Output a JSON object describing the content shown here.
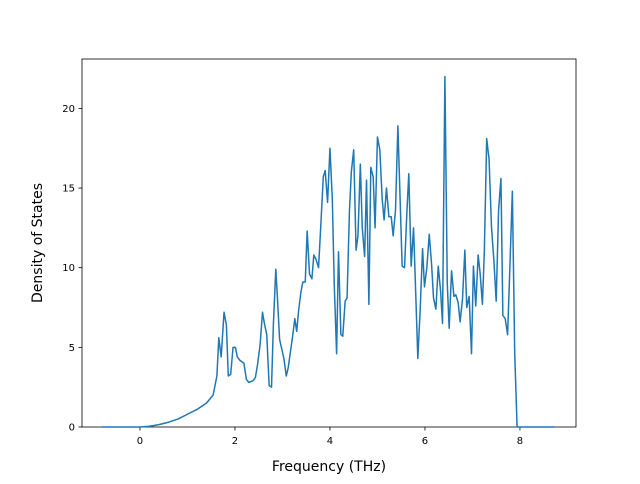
{
  "chart_data": {
    "type": "line",
    "xlabel": "Frequency (THz)",
    "ylabel": "Density of States",
    "xlim": [
      -1.22,
      9.18
    ],
    "ylim": [
      0,
      23.1
    ],
    "xticks": [
      0,
      2,
      4,
      6,
      8
    ],
    "yticks": [
      0,
      5,
      10,
      15,
      20
    ],
    "grid": false,
    "series": [
      {
        "name": "DOS",
        "color": "#1f77b4",
        "x": [
          -0.8,
          -0.4,
          0,
          0.2,
          0.4,
          0.6,
          0.8,
          1.0,
          1.2,
          1.4,
          1.54,
          1.62,
          1.66,
          1.71,
          1.77,
          1.82,
          1.86,
          1.91,
          1.96,
          2.01,
          2.05,
          2.1,
          2.19,
          2.24,
          2.29,
          2.38,
          2.43,
          2.48,
          2.53,
          2.58,
          2.62,
          2.67,
          2.72,
          2.77,
          2.81,
          2.86,
          2.9,
          2.94,
          3.03,
          3.08,
          3.12,
          3.21,
          3.26,
          3.3,
          3.34,
          3.39,
          3.43,
          3.48,
          3.52,
          3.57,
          3.62,
          3.66,
          3.71,
          3.76,
          3.81,
          3.86,
          3.9,
          3.95,
          4.0,
          4.05,
          4.09,
          4.14,
          4.18,
          4.23,
          4.27,
          4.32,
          4.36,
          4.41,
          4.45,
          4.5,
          4.55,
          4.59,
          4.64,
          4.68,
          4.73,
          4.77,
          4.82,
          4.86,
          4.91,
          4.95,
          5.0,
          5.05,
          5.1,
          5.14,
          5.19,
          5.24,
          5.29,
          5.33,
          5.38,
          5.43,
          5.48,
          5.52,
          5.57,
          5.62,
          5.66,
          5.71,
          5.76,
          5.81,
          5.85,
          5.9,
          5.95,
          5.99,
          6.04,
          6.09,
          6.14,
          6.18,
          6.23,
          6.28,
          6.33,
          6.37,
          6.42,
          6.47,
          6.51,
          6.56,
          6.61,
          6.65,
          6.7,
          6.74,
          6.79,
          6.84,
          6.88,
          6.93,
          6.98,
          7.02,
          7.07,
          7.12,
          7.16,
          7.21,
          7.25,
          7.3,
          7.35,
          7.4,
          7.45,
          7.5,
          7.55,
          7.6,
          7.64,
          7.69,
          7.74,
          7.79,
          7.84,
          7.89,
          7.94,
          8.72
        ],
        "values": [
          0,
          0,
          0,
          0.05,
          0.15,
          0.3,
          0.5,
          0.8,
          1.1,
          1.5,
          2.0,
          3.2,
          5.6,
          4.4,
          7.2,
          6.4,
          3.2,
          3.3,
          5.0,
          5.0,
          4.4,
          4.2,
          4.0,
          3.0,
          2.8,
          2.9,
          3.1,
          4.0,
          5.2,
          7.2,
          6.5,
          5.8,
          2.6,
          2.5,
          6.5,
          9.9,
          7.8,
          5.5,
          4.3,
          3.2,
          3.7,
          5.6,
          6.8,
          6.0,
          7.3,
          8.5,
          9.1,
          9.1,
          12.3,
          9.6,
          9.3,
          10.8,
          10.5,
          10.0,
          12.8,
          15.7,
          16.1,
          14.1,
          17.5,
          14.3,
          9.0,
          4.6,
          11.0,
          5.8,
          5.7,
          7.9,
          8.1,
          13.5,
          16.0,
          17.4,
          11.1,
          12.0,
          16.5,
          12.5,
          10.7,
          15.5,
          7.7,
          16.3,
          15.7,
          12.5,
          18.2,
          17.4,
          14.3,
          13.0,
          15.0,
          13.2,
          13.2,
          12.0,
          13.6,
          18.9,
          14.0,
          10.1,
          10.0,
          13.5,
          15.9,
          10.1,
          12.5,
          8.0,
          4.3,
          7.4,
          11.2,
          8.8,
          10.0,
          12.1,
          10.2,
          8.1,
          7.4,
          10.1,
          8.5,
          6.5,
          22.0,
          9.0,
          6.2,
          9.8,
          8.2,
          8.3,
          7.8,
          6.6,
          8.0,
          11.1,
          7.5,
          8.2,
          4.6,
          10.1,
          7.6,
          10.8,
          9.7,
          7.7,
          11.0,
          18.1,
          16.8,
          12.6,
          10.5,
          7.9,
          13.6,
          15.6,
          7.0,
          6.8,
          5.8,
          10.2,
          14.8,
          4.6,
          0,
          0
        ]
      }
    ]
  }
}
